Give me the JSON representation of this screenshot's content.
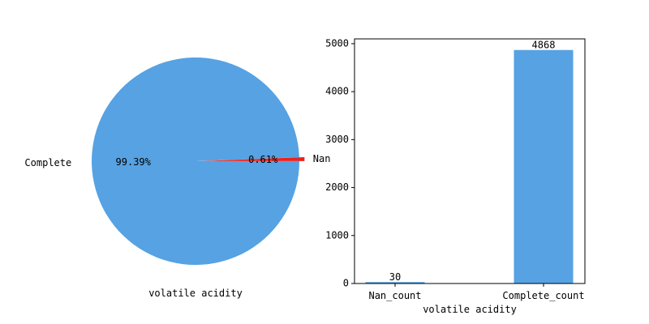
{
  "colors": {
    "complete": "#56a2e3",
    "nan": "#e8231f",
    "bar": "#56a2e3",
    "axis": "#000000"
  },
  "chart_data": [
    {
      "type": "pie",
      "labels": [
        "Nan",
        "Complete"
      ],
      "values": [
        30,
        4868
      ],
      "percent_labels": [
        "0.61%",
        "99.39%"
      ],
      "xlabel": "volatile acidity",
      "start_angle_deg": 0,
      "explode": [
        0.05,
        0
      ]
    },
    {
      "type": "bar",
      "categories": [
        "Nan_count",
        "Complete_count"
      ],
      "values": [
        30,
        4868
      ],
      "data_labels": [
        "30",
        "4868"
      ],
      "xlabel": "volatile acidity",
      "ylim": [
        0,
        5100
      ],
      "yticks": [
        0,
        1000,
        2000,
        3000,
        4000,
        5000
      ],
      "grid": false
    }
  ]
}
